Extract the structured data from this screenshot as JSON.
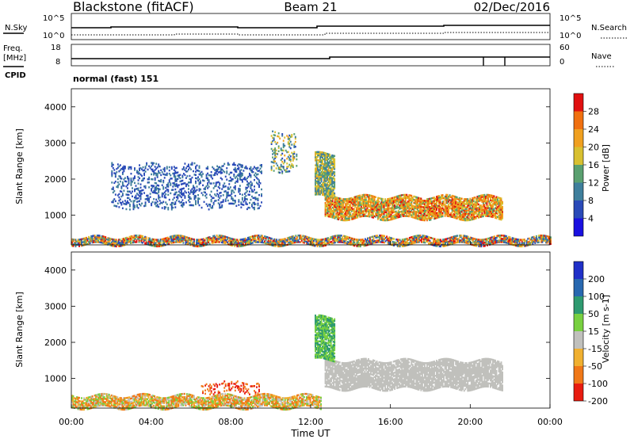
{
  "header": {
    "station": "Blackstone (fitACF)",
    "beam": "Beam 21",
    "date": "02/Dec/2016"
  },
  "housekeeping": {
    "nsky_label": "N.Sky",
    "nsearch_label": "N.Search",
    "nsky_top": "10^5",
    "nsky_bottom": "10^0",
    "nsearch_top": "10^5",
    "nsearch_bottom": "10^0",
    "freq_label": "Freq.",
    "freq_unit": "[MHz]",
    "freq_top": "18",
    "freq_bottom": "8",
    "nave_label": "Nave",
    "nave_top": "60",
    "nave_bottom": "0",
    "cpid_label": "CPID",
    "cpid_value": "normal (fast) 151"
  },
  "chart_data": [
    {
      "type": "heatmap",
      "panel": "power",
      "ylabel": "Slant Range [km]",
      "xlabel": "",
      "xlim": [
        "00:00",
        "24:00"
      ],
      "ylim": [
        180,
        4500
      ],
      "yticks": [
        1000,
        2000,
        3000,
        4000
      ],
      "colorbar": {
        "label": "Power [dB]",
        "ticks": [
          "4",
          "8",
          "12",
          "16",
          "20",
          "24",
          "28"
        ],
        "range": [
          0,
          30
        ],
        "colors": [
          "#1a10e0",
          "#2a4ab8",
          "#3f7f9c",
          "#5aa070",
          "#d8c030",
          "#f0a020",
          "#f07010",
          "#e01010"
        ]
      },
      "features": [
        {
          "name": "strong echo band",
          "t_start": 12.7,
          "t_end": 21.6,
          "range_km": [
            900,
            1500
          ],
          "power_db": [
            12,
            28
          ]
        },
        {
          "name": "upper echo band",
          "t_start": 12.2,
          "t_end": 13.2,
          "range_km": [
            1500,
            2700
          ],
          "power_db": [
            8,
            20
          ]
        },
        {
          "name": "patchy echoes",
          "t_start": 2.0,
          "t_end": 9.5,
          "range_km": [
            1200,
            2400
          ],
          "power_db": [
            4,
            10
          ]
        },
        {
          "name": "patch near 3000 km",
          "t_start": 10.0,
          "t_end": 11.3,
          "range_km": [
            2200,
            3300
          ],
          "power_db": [
            6,
            20
          ]
        },
        {
          "name": "near range",
          "t_start": 0.0,
          "t_end": 24.0,
          "range_km": [
            180,
            400
          ],
          "power_db": [
            4,
            30
          ]
        }
      ]
    },
    {
      "type": "heatmap",
      "panel": "velocity",
      "ylabel": "Slant Range [km]",
      "xlabel": "Time UT",
      "xticks": [
        "00:00",
        "04:00",
        "08:00",
        "12:00",
        "16:00",
        "20:00",
        "00:00"
      ],
      "ylim": [
        180,
        4500
      ],
      "yticks": [
        1000,
        2000,
        3000,
        4000
      ],
      "colorbar": {
        "label": "Velocity [m s-1]",
        "ticks": [
          "200",
          "100",
          "50",
          "15",
          "-15",
          "-50",
          "-100",
          "-200"
        ],
        "range": [
          -250,
          250
        ],
        "colors": [
          "#2030c8",
          "#2868b0",
          "#2e9a70",
          "#78d040",
          "#c0c0bc",
          "#f0b030",
          "#f07818",
          "#e81c10"
        ]
      },
      "features": [
        {
          "name": "ground-scatter band",
          "t_start": 12.7,
          "t_end": 21.6,
          "range_km": [
            700,
            1500
          ],
          "velocity_ms": [
            -15,
            15
          ]
        },
        {
          "name": "upper band",
          "t_start": 12.2,
          "t_end": 13.2,
          "range_km": [
            1500,
            2700
          ],
          "velocity_ms": [
            15,
            80
          ]
        },
        {
          "name": "negative-velocity patch",
          "t_start": 6.5,
          "t_end": 9.5,
          "range_km": [
            600,
            900
          ],
          "velocity_ms": [
            -150,
            -60
          ]
        },
        {
          "name": "near range",
          "t_start": 0.0,
          "t_end": 12.5,
          "range_km": [
            180,
            500
          ],
          "velocity_ms": [
            -100,
            50
          ]
        }
      ]
    }
  ]
}
